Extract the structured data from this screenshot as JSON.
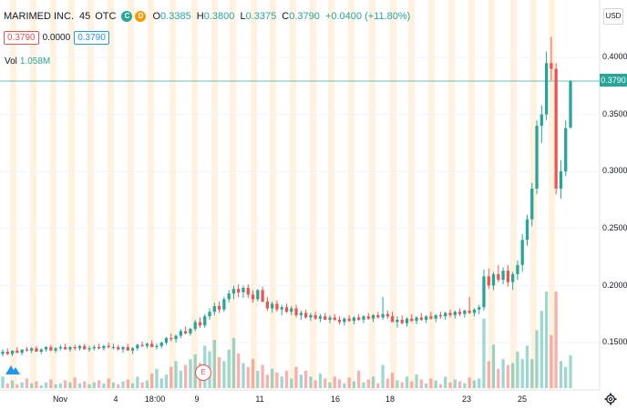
{
  "header": {
    "symbol": "MARIMED INC.",
    "interval": "45",
    "exchange": "OTC",
    "badge_c": "C",
    "badge_d": "D",
    "ohlc": [
      {
        "k": "O",
        "v": "0.3385"
      },
      {
        "k": "H",
        "v": "0.3800"
      },
      {
        "k": "L",
        "v": "0.3375"
      },
      {
        "k": "C",
        "v": "0.3790"
      },
      {
        "k": "",
        "v": "+0.0400 (+11.80%)"
      }
    ]
  },
  "quote": {
    "bid": "0.3790",
    "spread": "0.0000",
    "ask": "0.3790"
  },
  "volume": {
    "label": "Vol",
    "value": "1.058M"
  },
  "currency": "USD",
  "last_price": "0.3790",
  "earnings_marker": "E",
  "y_axis": {
    "ticks": [
      "0.4000",
      "0.3500",
      "0.3000",
      "0.2500",
      "0.2000",
      "0.1500"
    ]
  },
  "x_axis": {
    "ticks": [
      "Nov",
      "4",
      "18:00",
      "9",
      "11",
      "16",
      "18",
      "23",
      "25"
    ]
  },
  "colors": {
    "up": "#26a69a",
    "down": "#ef5350",
    "session": "#fff3e0",
    "grid": "#f0f3fa"
  },
  "chart_data": {
    "type": "candlestick",
    "ylim": [
      0.13,
      0.42
    ],
    "candles_ohlc": [
      [
        0.14,
        0.144,
        0.138,
        0.142
      ],
      [
        0.142,
        0.145,
        0.139,
        0.14
      ],
      [
        0.14,
        0.143,
        0.138,
        0.143
      ],
      [
        0.143,
        0.146,
        0.141,
        0.141
      ],
      [
        0.141,
        0.144,
        0.139,
        0.144
      ],
      [
        0.144,
        0.146,
        0.142,
        0.143
      ],
      [
        0.143,
        0.146,
        0.141,
        0.145
      ],
      [
        0.145,
        0.147,
        0.142,
        0.142
      ],
      [
        0.142,
        0.145,
        0.14,
        0.144
      ],
      [
        0.144,
        0.147,
        0.142,
        0.146
      ],
      [
        0.146,
        0.148,
        0.143,
        0.143
      ],
      [
        0.143,
        0.146,
        0.141,
        0.145
      ],
      [
        0.145,
        0.148,
        0.143,
        0.146
      ],
      [
        0.146,
        0.149,
        0.144,
        0.144
      ],
      [
        0.144,
        0.147,
        0.142,
        0.146
      ],
      [
        0.146,
        0.148,
        0.143,
        0.145
      ],
      [
        0.145,
        0.148,
        0.143,
        0.147
      ],
      [
        0.147,
        0.149,
        0.144,
        0.144
      ],
      [
        0.144,
        0.147,
        0.142,
        0.145
      ],
      [
        0.145,
        0.148,
        0.143,
        0.146
      ],
      [
        0.146,
        0.149,
        0.144,
        0.145
      ],
      [
        0.145,
        0.148,
        0.143,
        0.147
      ],
      [
        0.147,
        0.15,
        0.145,
        0.146
      ],
      [
        0.146,
        0.149,
        0.144,
        0.146
      ],
      [
        0.146,
        0.148,
        0.143,
        0.144
      ],
      [
        0.144,
        0.147,
        0.141,
        0.146
      ],
      [
        0.146,
        0.149,
        0.144,
        0.143
      ],
      [
        0.143,
        0.146,
        0.14,
        0.145
      ],
      [
        0.145,
        0.149,
        0.143,
        0.148
      ],
      [
        0.148,
        0.151,
        0.146,
        0.147
      ],
      [
        0.147,
        0.15,
        0.145,
        0.149
      ],
      [
        0.149,
        0.152,
        0.147,
        0.146
      ],
      [
        0.146,
        0.149,
        0.144,
        0.147
      ],
      [
        0.147,
        0.151,
        0.145,
        0.15
      ],
      [
        0.15,
        0.155,
        0.148,
        0.154
      ],
      [
        0.154,
        0.158,
        0.151,
        0.153
      ],
      [
        0.153,
        0.157,
        0.15,
        0.156
      ],
      [
        0.156,
        0.162,
        0.154,
        0.16
      ],
      [
        0.16,
        0.164,
        0.157,
        0.158
      ],
      [
        0.158,
        0.163,
        0.156,
        0.162
      ],
      [
        0.162,
        0.17,
        0.16,
        0.168
      ],
      [
        0.168,
        0.172,
        0.163,
        0.165
      ],
      [
        0.165,
        0.175,
        0.163,
        0.173
      ],
      [
        0.173,
        0.18,
        0.17,
        0.177
      ],
      [
        0.177,
        0.185,
        0.174,
        0.182
      ],
      [
        0.182,
        0.186,
        0.176,
        0.179
      ],
      [
        0.179,
        0.19,
        0.177,
        0.188
      ],
      [
        0.188,
        0.196,
        0.185,
        0.193
      ],
      [
        0.193,
        0.2,
        0.188,
        0.197
      ],
      [
        0.197,
        0.201,
        0.19,
        0.194
      ],
      [
        0.194,
        0.2,
        0.189,
        0.198
      ],
      [
        0.198,
        0.201,
        0.189,
        0.192
      ],
      [
        0.192,
        0.196,
        0.185,
        0.188
      ],
      [
        0.188,
        0.197,
        0.186,
        0.196
      ],
      [
        0.196,
        0.199,
        0.185,
        0.186
      ],
      [
        0.186,
        0.19,
        0.178,
        0.18
      ],
      [
        0.18,
        0.186,
        0.176,
        0.184
      ],
      [
        0.184,
        0.187,
        0.177,
        0.179
      ],
      [
        0.179,
        0.183,
        0.174,
        0.181
      ],
      [
        0.181,
        0.184,
        0.176,
        0.177
      ],
      [
        0.177,
        0.182,
        0.174,
        0.18
      ],
      [
        0.18,
        0.183,
        0.172,
        0.174
      ],
      [
        0.174,
        0.178,
        0.17,
        0.176
      ],
      [
        0.176,
        0.179,
        0.171,
        0.172
      ],
      [
        0.172,
        0.176,
        0.169,
        0.174
      ],
      [
        0.174,
        0.177,
        0.17,
        0.171
      ],
      [
        0.171,
        0.175,
        0.168,
        0.173
      ],
      [
        0.173,
        0.176,
        0.17,
        0.17
      ],
      [
        0.17,
        0.174,
        0.167,
        0.172
      ],
      [
        0.172,
        0.175,
        0.169,
        0.17
      ],
      [
        0.17,
        0.173,
        0.166,
        0.168
      ],
      [
        0.168,
        0.172,
        0.165,
        0.171
      ],
      [
        0.171,
        0.174,
        0.168,
        0.169
      ],
      [
        0.169,
        0.173,
        0.166,
        0.172
      ],
      [
        0.172,
        0.175,
        0.169,
        0.17
      ],
      [
        0.17,
        0.174,
        0.167,
        0.173
      ],
      [
        0.173,
        0.176,
        0.17,
        0.171
      ],
      [
        0.171,
        0.175,
        0.168,
        0.174
      ],
      [
        0.174,
        0.177,
        0.171,
        0.172
      ],
      [
        0.172,
        0.19,
        0.17,
        0.175
      ],
      [
        0.175,
        0.178,
        0.171,
        0.173
      ],
      [
        0.173,
        0.177,
        0.169,
        0.168
      ],
      [
        0.168,
        0.173,
        0.163,
        0.17
      ],
      [
        0.17,
        0.174,
        0.166,
        0.167
      ],
      [
        0.167,
        0.172,
        0.164,
        0.171
      ],
      [
        0.171,
        0.175,
        0.168,
        0.169
      ],
      [
        0.169,
        0.173,
        0.166,
        0.172
      ],
      [
        0.172,
        0.176,
        0.169,
        0.17
      ],
      [
        0.17,
        0.174,
        0.167,
        0.173
      ],
      [
        0.173,
        0.177,
        0.17,
        0.171
      ],
      [
        0.171,
        0.175,
        0.168,
        0.174
      ],
      [
        0.174,
        0.177,
        0.171,
        0.173
      ],
      [
        0.173,
        0.177,
        0.17,
        0.176
      ],
      [
        0.176,
        0.179,
        0.172,
        0.174
      ],
      [
        0.174,
        0.178,
        0.171,
        0.177
      ],
      [
        0.177,
        0.18,
        0.173,
        0.175
      ],
      [
        0.175,
        0.179,
        0.172,
        0.178
      ],
      [
        0.178,
        0.19,
        0.175,
        0.176
      ],
      [
        0.176,
        0.18,
        0.173,
        0.179
      ],
      [
        0.179,
        0.183,
        0.175,
        0.181
      ],
      [
        0.181,
        0.214,
        0.178,
        0.208
      ],
      [
        0.208,
        0.215,
        0.197,
        0.2
      ],
      [
        0.2,
        0.212,
        0.196,
        0.21
      ],
      [
        0.21,
        0.218,
        0.203,
        0.205
      ],
      [
        0.205,
        0.216,
        0.201,
        0.213
      ],
      [
        0.213,
        0.218,
        0.199,
        0.203
      ],
      [
        0.203,
        0.212,
        0.196,
        0.21
      ],
      [
        0.21,
        0.222,
        0.205,
        0.218
      ],
      [
        0.218,
        0.245,
        0.212,
        0.24
      ],
      [
        0.24,
        0.262,
        0.235,
        0.258
      ],
      [
        0.258,
        0.29,
        0.252,
        0.285
      ],
      [
        0.285,
        0.345,
        0.28,
        0.34
      ],
      [
        0.34,
        0.358,
        0.325,
        0.35
      ],
      [
        0.35,
        0.405,
        0.345,
        0.395
      ],
      [
        0.395,
        0.418,
        0.38,
        0.39
      ],
      [
        0.39,
        0.395,
        0.28,
        0.285
      ],
      [
        0.285,
        0.31,
        0.276,
        0.3
      ],
      [
        0.3,
        0.345,
        0.296,
        0.338
      ],
      [
        0.3385,
        0.38,
        0.3375,
        0.379
      ]
    ],
    "volumes": [
      0.12,
      0.05,
      0.08,
      0.04,
      0.06,
      0.1,
      0.05,
      0.07,
      0.03,
      0.06,
      0.09,
      0.04,
      0.05,
      0.08,
      0.06,
      0.11,
      0.05,
      0.07,
      0.04,
      0.06,
      0.08,
      0.05,
      0.1,
      0.06,
      0.04,
      0.07,
      0.09,
      0.05,
      0.12,
      0.06,
      0.08,
      0.15,
      0.2,
      0.1,
      0.14,
      0.22,
      0.28,
      0.18,
      0.24,
      0.3,
      0.35,
      0.26,
      0.44,
      0.38,
      0.5,
      0.32,
      0.28,
      0.4,
      0.52,
      0.36,
      0.26,
      0.22,
      0.3,
      0.18,
      0.24,
      0.14,
      0.2,
      0.16,
      0.12,
      0.18,
      0.1,
      0.22,
      0.14,
      0.18,
      0.12,
      0.08,
      0.15,
      0.1,
      0.06,
      0.12,
      0.09,
      0.05,
      0.11,
      0.07,
      0.18,
      0.06,
      0.09,
      0.12,
      0.05,
      0.24,
      0.1,
      0.16,
      0.08,
      0.06,
      0.12,
      0.07,
      0.14,
      0.09,
      0.05,
      0.1,
      0.08,
      0.04,
      0.12,
      0.06,
      0.09,
      0.07,
      0.05,
      0.11,
      0.08,
      0.1,
      0.72,
      0.28,
      0.45,
      0.2,
      0.3,
      0.24,
      0.26,
      0.38,
      0.3,
      0.44,
      0.3,
      0.6,
      0.8,
      1.0,
      0.55,
      1.0,
      0.28,
      0.22,
      0.34
    ]
  }
}
